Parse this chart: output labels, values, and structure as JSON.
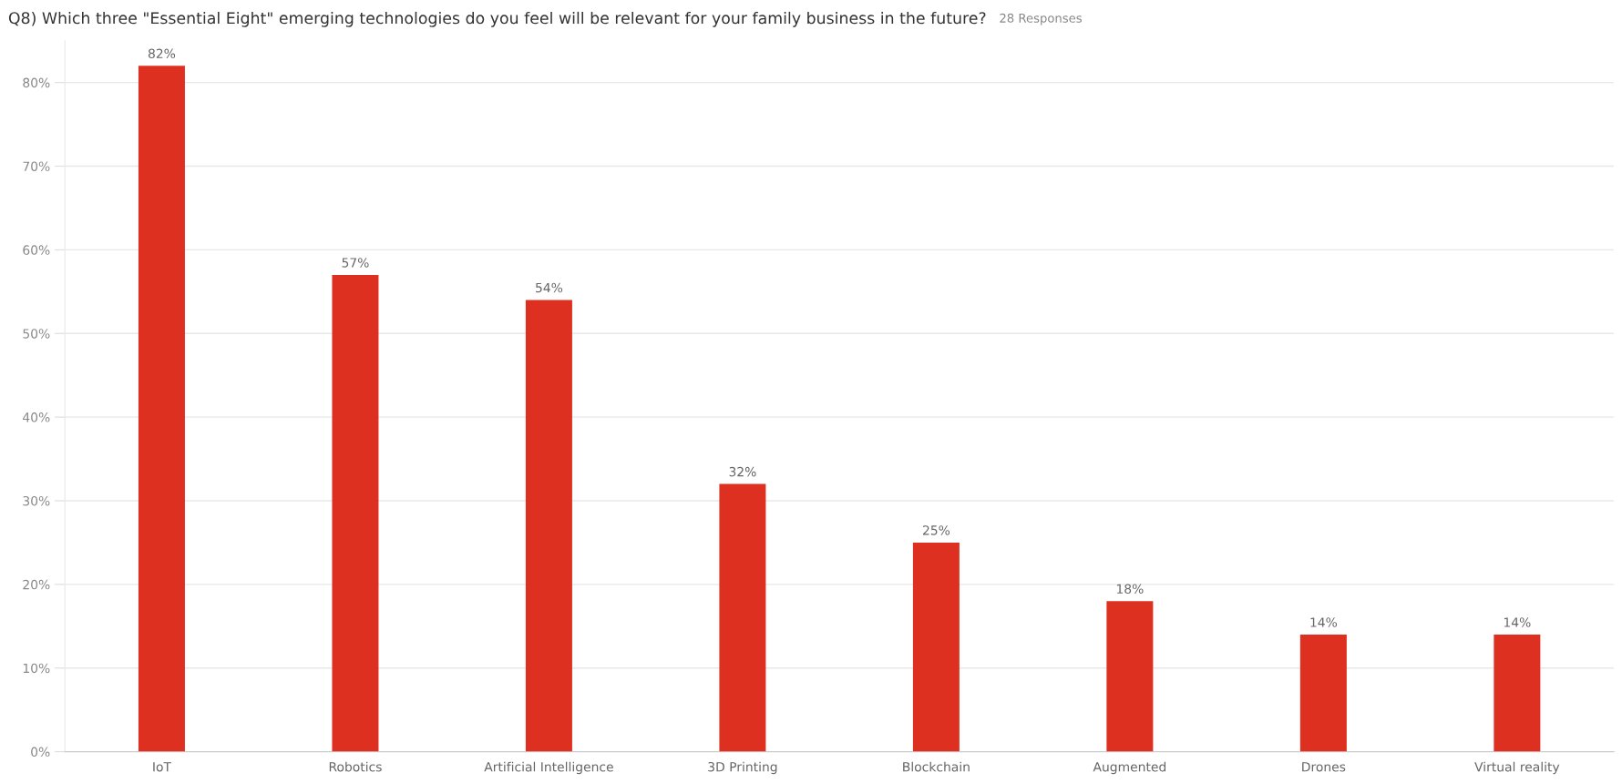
{
  "chart_data": {
    "type": "bar",
    "title": "Q8) Which three \"Essential Eight\" emerging technologies do you feel will be relevant for your family business in the future?",
    "subtitle": "28 Responses",
    "categories": [
      "IoT",
      "Robotics",
      "Artificial Intelligence",
      "3D Printing",
      "Blockchain",
      "Augmented",
      "Drones",
      "Virtual reality"
    ],
    "values": [
      82,
      57,
      54,
      32,
      25,
      18,
      14,
      14
    ],
    "color": "#de3020",
    "value_labels": [
      "82%",
      "57%",
      "54%",
      "32%",
      "25%",
      "18%",
      "14%",
      "14%"
    ],
    "ylim": [
      0,
      85
    ],
    "yticks": [
      {
        "value": 0,
        "label": "0%"
      },
      {
        "value": 10,
        "label": "10%"
      },
      {
        "value": 20,
        "label": "20%"
      },
      {
        "value": 30,
        "label": "30%"
      },
      {
        "value": 40,
        "label": "40%"
      },
      {
        "value": 50,
        "label": "50%"
      },
      {
        "value": 60,
        "label": "60%"
      },
      {
        "value": 70,
        "label": "70%"
      },
      {
        "value": 80,
        "label": "80%"
      }
    ],
    "grid": "y",
    "legend": false
  }
}
